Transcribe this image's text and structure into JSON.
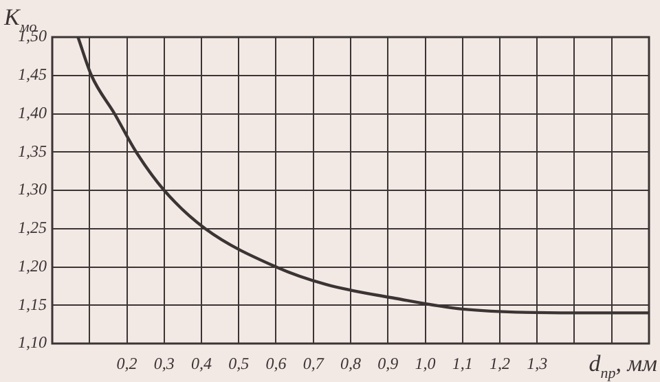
{
  "chart_data": {
    "type": "line",
    "xlabel": "d$_{пр}$, мм",
    "ylabel": "К$_{мо}$",
    "x": [
      0.069,
      0.105,
      0.167,
      0.225,
      0.3,
      0.41,
      0.6,
      0.735,
      0.92,
      1.1,
      1.4,
      1.6
    ],
    "series": [
      {
        "color": "#3a3434",
        "values": [
          1.5,
          1.45,
          1.4,
          1.35,
          1.3,
          1.25,
          1.2,
          1.177,
          1.159,
          1.145,
          1.14,
          1.14
        ]
      }
    ],
    "xlim": [
      0,
      1.6
    ],
    "xticks": [
      {
        "value": 0,
        "label": null
      },
      {
        "value": 0.1,
        "label": null
      },
      {
        "value": 0.2,
        "label": "0,2"
      },
      {
        "value": 0.3,
        "label": "0,3"
      },
      {
        "value": 0.4,
        "label": "0,4"
      },
      {
        "value": 0.5,
        "label": "0,5"
      },
      {
        "value": 0.6,
        "label": "0,6"
      },
      {
        "value": 0.7,
        "label": "0,7"
      },
      {
        "value": 0.8,
        "label": "0,8"
      },
      {
        "value": 0.9,
        "label": "0,9"
      },
      {
        "value": 1.0,
        "label": "1,0"
      },
      {
        "value": 1.1,
        "label": "1,1"
      },
      {
        "value": 1.2,
        "label": "1,2"
      },
      {
        "value": 1.3,
        "label": "1,3"
      },
      {
        "value": 1.4,
        "label": null
      },
      {
        "value": 1.5,
        "label": null
      },
      {
        "value": 1.6,
        "label": null
      }
    ],
    "ylim": [
      1.1,
      1.5
    ],
    "yticks": [
      {
        "value": 1.1,
        "label": "1,10"
      },
      {
        "value": 1.15,
        "label": "1,15"
      },
      {
        "value": 1.2,
        "label": "1,20"
      },
      {
        "value": 1.25,
        "label": "1,25"
      },
      {
        "value": 1.3,
        "label": "1,30"
      },
      {
        "value": 1.35,
        "label": "1,35"
      },
      {
        "value": 1.4,
        "label": "1,40"
      },
      {
        "value": 1.45,
        "label": "1,45"
      },
      {
        "value": 1.5,
        "label": "1,50"
      }
    ],
    "grid": true,
    "marker": "none",
    "line_style": "solid",
    "legend": false
  }
}
